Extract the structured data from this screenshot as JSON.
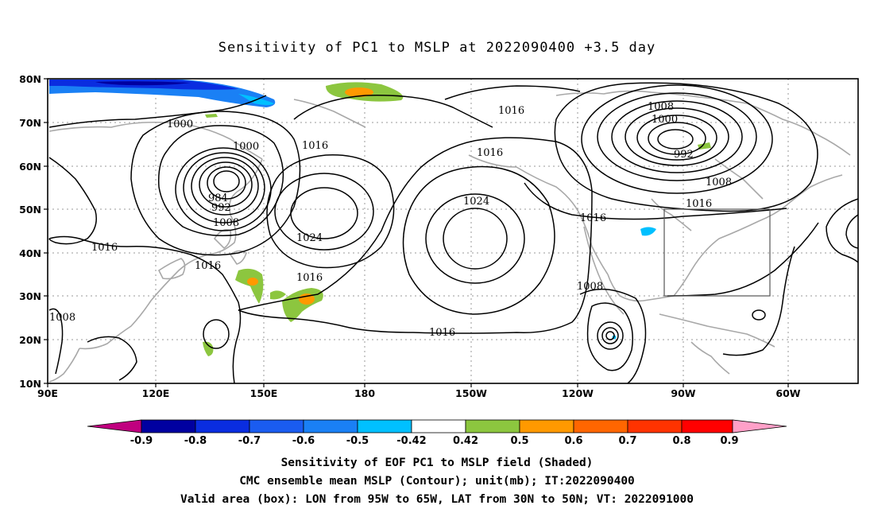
{
  "title": "Sensitivity of PC1 to MSLP at 2022090400 +3.5 day",
  "axes": {
    "lat_labels": [
      "80N",
      "70N",
      "60N",
      "50N",
      "40N",
      "30N",
      "20N",
      "10N"
    ],
    "lon_labels": [
      "90E",
      "120E",
      "150E",
      "180",
      "150W",
      "120W",
      "90W",
      "60W"
    ]
  },
  "contour_labels": [
    "1016",
    "1008",
    "1000",
    "992",
    "1016",
    "1000",
    "1016",
    "1016",
    "1000",
    "984",
    "992",
    "1008",
    "1024",
    "1024",
    "1016",
    "1016",
    "1016",
    "1016",
    "1008",
    "1016",
    "1008",
    "1008"
  ],
  "colorbar": {
    "labels": [
      "-0.9",
      "-0.8",
      "-0.7",
      "-0.6",
      "-0.5",
      "-0.42",
      "0.42",
      "0.5",
      "0.6",
      "0.7",
      "0.8",
      "0.9"
    ],
    "colors": [
      "#c0007f",
      "#0000a0",
      "#0a2de0",
      "#1a5cf0",
      "#1a80f5",
      "#00c0ff",
      "#ffffff",
      "#8cc63f",
      "#ff9900",
      "#ff6600",
      "#ff3300",
      "#ff0000",
      "#ffa0c8"
    ]
  },
  "captions": [
    "Sensitivity of EOF PC1 to MSLP field (Shaded)",
    "CMC ensemble mean MSLP (Contour); unit(mb); IT:2022090400",
    "Valid area (box): LON from 95W to 65W, LAT from 30N to 50N; VT: 2022091000"
  ]
}
